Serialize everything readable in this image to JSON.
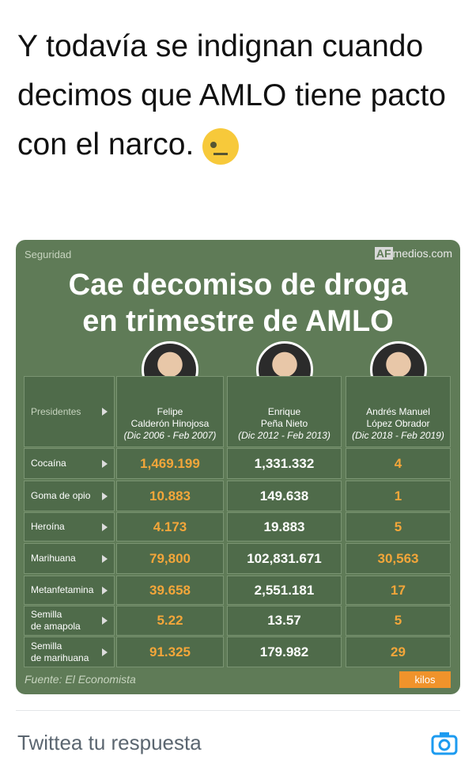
{
  "tweet": {
    "text": "Y todavía se indignan cuando decimos que AMLO tiene pacto con el narco."
  },
  "infographic": {
    "section": "Seguridad",
    "logo": [
      "AF",
      "medios.com"
    ],
    "title": [
      "Cae decomiso de droga",
      "en trimestre de AMLO"
    ],
    "table": {
      "header": {
        "label": "Presidentes",
        "columns": [
          {
            "name": [
              "Felipe",
              "Calderón Hinojosa"
            ],
            "period": "(Dic 2006 - Feb 2007)"
          },
          {
            "name": [
              "Enrique",
              "Peña Nieto"
            ],
            "period": "(Dic 2012 - Feb 2013)"
          },
          {
            "name": [
              "Andrés Manuel",
              "López Obrador"
            ],
            "period": "(Dic 2018 - Feb 2019)"
          }
        ]
      },
      "rows": [
        {
          "label": [
            "Cocaína"
          ],
          "values": [
            "1,469.199",
            "1,331.332",
            "4"
          ]
        },
        {
          "label": [
            "Goma de opio"
          ],
          "values": [
            "10.883",
            "149.638",
            "1"
          ]
        },
        {
          "label": [
            "Heroína"
          ],
          "values": [
            "4.173",
            "19.883",
            "5"
          ]
        },
        {
          "label": [
            "Marihuana"
          ],
          "values": [
            "79,800",
            "102,831.671",
            "30,563"
          ]
        },
        {
          "label": [
            "Metanfetamina"
          ],
          "values": [
            "39.658",
            "2,551.181",
            "17"
          ]
        },
        {
          "label": [
            "Semilla",
            "de amapola"
          ],
          "values": [
            "5.22",
            "13.57",
            "5"
          ]
        },
        {
          "label": [
            "Semilla",
            "de marihuana"
          ],
          "values": [
            "91.325",
            "179.982",
            "29"
          ]
        }
      ]
    },
    "source": "Fuente: El Economista",
    "unit": "kilos"
  },
  "reply": {
    "placeholder": "Twittea tu respuesta"
  }
}
